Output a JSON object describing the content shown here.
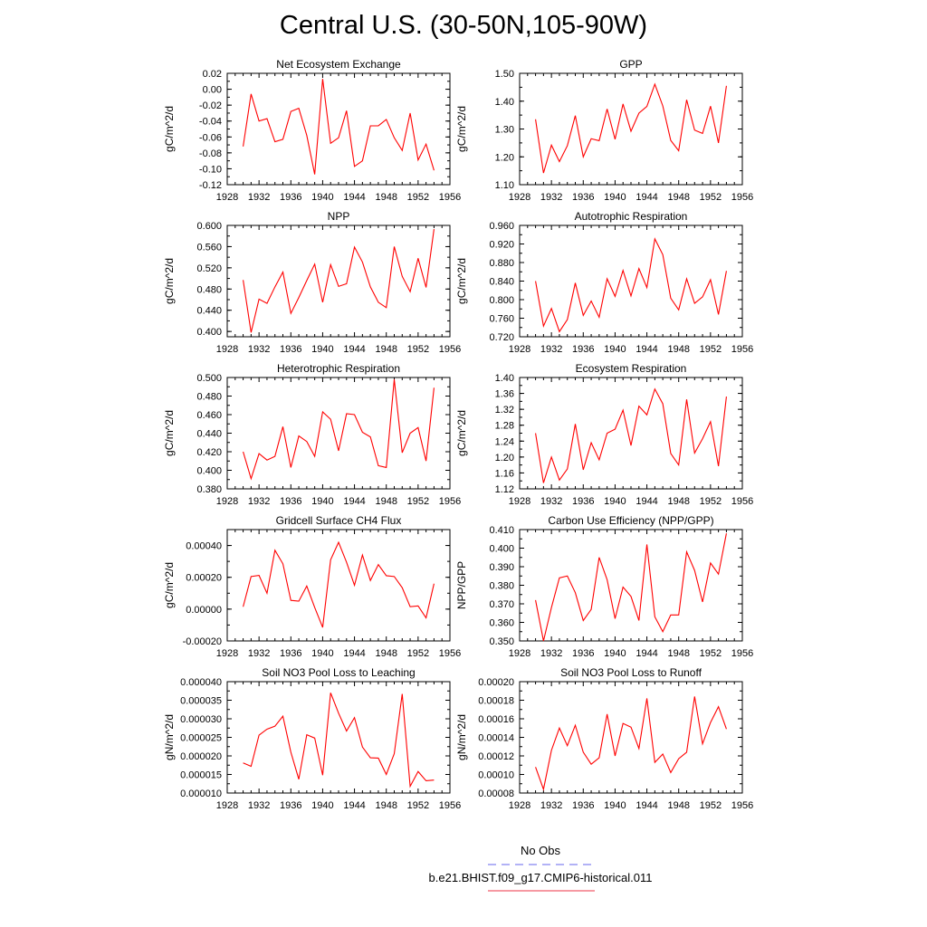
{
  "title": "Central U.S. (30-50N,105-90W)",
  "legend": {
    "obs_label": "No Obs",
    "obs_color": "#6666ee",
    "model_label": "b.e21.BHIST.f09_g17.CMIP6-historical.011",
    "model_color": "#ee3344"
  },
  "line_color": "#ff0000",
  "chart_data": [
    {
      "type": "line",
      "title": "Net Ecosystem Exchange",
      "ylabel": "gC/m^2/d",
      "xlim": [
        1928,
        1956
      ],
      "ylim": [
        -0.12,
        0.02
      ],
      "xticks": [
        "1928",
        "1932",
        "1936",
        "1940",
        "1944",
        "1948",
        "1952",
        "1956"
      ],
      "yticks": [
        "-0.12",
        "-0.10",
        "-0.08",
        "-0.06",
        "-0.04",
        "-0.02",
        "0.00",
        "0.02"
      ],
      "x": [
        1930,
        1931,
        1932,
        1933,
        1934,
        1935,
        1936,
        1937,
        1938,
        1939,
        1940,
        1941,
        1942,
        1943,
        1944,
        1945,
        1946,
        1947,
        1948,
        1949,
        1950,
        1951,
        1952,
        1953,
        1954
      ],
      "values": [
        -0.072,
        -0.006,
        -0.04,
        -0.037,
        -0.066,
        -0.063,
        -0.028,
        -0.024,
        -0.058,
        -0.107,
        0.013,
        -0.068,
        -0.061,
        -0.027,
        -0.097,
        -0.09,
        -0.046,
        -0.046,
        -0.038,
        -0.061,
        -0.077,
        -0.03,
        -0.089,
        -0.069,
        -0.102
      ]
    },
    {
      "type": "line",
      "title": "GPP",
      "ylabel": "gC/m^2/d",
      "xlim": [
        1928,
        1956
      ],
      "ylim": [
        1.1,
        1.5
      ],
      "xticks": [
        "1928",
        "1932",
        "1936",
        "1940",
        "1944",
        "1948",
        "1952",
        "1956"
      ],
      "yticks": [
        "1.10",
        "1.20",
        "1.30",
        "1.40",
        "1.50"
      ],
      "x": [
        1930,
        1931,
        1932,
        1933,
        1934,
        1935,
        1936,
        1937,
        1938,
        1939,
        1940,
        1941,
        1942,
        1943,
        1944,
        1945,
        1946,
        1947,
        1948,
        1949,
        1950,
        1951,
        1952,
        1953,
        1954
      ],
      "values": [
        1.335,
        1.142,
        1.242,
        1.183,
        1.24,
        1.348,
        1.2,
        1.265,
        1.258,
        1.372,
        1.263,
        1.39,
        1.292,
        1.357,
        1.381,
        1.461,
        1.383,
        1.259,
        1.222,
        1.405,
        1.296,
        1.284,
        1.382,
        1.25,
        1.455
      ]
    },
    {
      "type": "line",
      "title": "NPP",
      "ylabel": "gC/m^2/d",
      "xlim": [
        1928,
        1956
      ],
      "ylim": [
        0.39,
        0.6
      ],
      "xticks": [
        "1928",
        "1932",
        "1936",
        "1940",
        "1944",
        "1948",
        "1952",
        "1956"
      ],
      "yticks": [
        "0.400",
        "0.440",
        "0.480",
        "0.520",
        "0.560",
        "0.600"
      ],
      "x": [
        1930,
        1931,
        1932,
        1933,
        1934,
        1935,
        1936,
        1937,
        1938,
        1939,
        1940,
        1941,
        1942,
        1943,
        1944,
        1945,
        1946,
        1947,
        1948,
        1949,
        1950,
        1951,
        1952,
        1953,
        1954
      ],
      "values": [
        0.497,
        0.398,
        0.461,
        0.453,
        0.484,
        0.512,
        0.434,
        0.464,
        0.496,
        0.527,
        0.455,
        0.526,
        0.485,
        0.49,
        0.559,
        0.531,
        0.484,
        0.455,
        0.445,
        0.56,
        0.504,
        0.475,
        0.538,
        0.483,
        0.593
      ]
    },
    {
      "type": "line",
      "title": "Autotrophic Respiration",
      "ylabel": "gC/m^2/d",
      "xlim": [
        1928,
        1956
      ],
      "ylim": [
        0.72,
        0.96
      ],
      "xticks": [
        "1928",
        "1932",
        "1936",
        "1940",
        "1944",
        "1948",
        "1952",
        "1956"
      ],
      "yticks": [
        "0.720",
        "0.760",
        "0.800",
        "0.840",
        "0.880",
        "0.920",
        "0.960"
      ],
      "x": [
        1930,
        1931,
        1932,
        1933,
        1934,
        1935,
        1936,
        1937,
        1938,
        1939,
        1940,
        1941,
        1942,
        1943,
        1944,
        1945,
        1946,
        1947,
        1948,
        1949,
        1950,
        1951,
        1952,
        1953,
        1954
      ],
      "values": [
        0.84,
        0.743,
        0.781,
        0.731,
        0.757,
        0.836,
        0.766,
        0.797,
        0.762,
        0.845,
        0.807,
        0.863,
        0.808,
        0.867,
        0.826,
        0.931,
        0.897,
        0.803,
        0.778,
        0.845,
        0.792,
        0.806,
        0.843,
        0.768,
        0.862
      ]
    },
    {
      "type": "line",
      "title": "Heterotrophic Respiration",
      "ylabel": "gC/m^2/d",
      "xlim": [
        1928,
        1956
      ],
      "ylim": [
        0.38,
        0.5
      ],
      "xticks": [
        "1928",
        "1932",
        "1936",
        "1940",
        "1944",
        "1948",
        "1952",
        "1956"
      ],
      "yticks": [
        "0.380",
        "0.400",
        "0.420",
        "0.440",
        "0.460",
        "0.480",
        "0.500"
      ],
      "x": [
        1930,
        1931,
        1932,
        1933,
        1934,
        1935,
        1936,
        1937,
        1938,
        1939,
        1940,
        1941,
        1942,
        1943,
        1944,
        1945,
        1946,
        1947,
        1948,
        1949,
        1950,
        1951,
        1952,
        1953,
        1954
      ],
      "values": [
        0.42,
        0.391,
        0.418,
        0.411,
        0.415,
        0.447,
        0.403,
        0.437,
        0.431,
        0.415,
        0.463,
        0.455,
        0.421,
        0.461,
        0.46,
        0.441,
        0.436,
        0.405,
        0.403,
        0.498,
        0.419,
        0.44,
        0.446,
        0.41,
        0.489
      ]
    },
    {
      "type": "line",
      "title": "Ecosystem Respiration",
      "ylabel": "gC/m^2/d",
      "xlim": [
        1928,
        1956
      ],
      "ylim": [
        1.12,
        1.4
      ],
      "xticks": [
        "1928",
        "1932",
        "1936",
        "1940",
        "1944",
        "1948",
        "1952",
        "1956"
      ],
      "yticks": [
        "1.12",
        "1.16",
        "1.20",
        "1.24",
        "1.28",
        "1.32",
        "1.36",
        "1.40"
      ],
      "x": [
        1930,
        1931,
        1932,
        1933,
        1934,
        1935,
        1936,
        1937,
        1938,
        1939,
        1940,
        1941,
        1942,
        1943,
        1944,
        1945,
        1946,
        1947,
        1948,
        1949,
        1950,
        1951,
        1952,
        1953,
        1954
      ],
      "values": [
        1.26,
        1.135,
        1.2,
        1.142,
        1.17,
        1.283,
        1.168,
        1.236,
        1.193,
        1.26,
        1.27,
        1.318,
        1.229,
        1.328,
        1.306,
        1.371,
        1.334,
        1.209,
        1.18,
        1.345,
        1.21,
        1.246,
        1.289,
        1.177,
        1.352
      ]
    },
    {
      "type": "line",
      "title": "Gridcell Surface CH4 Flux",
      "ylabel": "gC/m^2/d",
      "xlim": [
        1928,
        1956
      ],
      "ylim": [
        -0.0002,
        0.0005
      ],
      "xticks": [
        "1928",
        "1932",
        "1936",
        "1940",
        "1944",
        "1948",
        "1952",
        "1956"
      ],
      "yticks": [
        "-0.00020",
        "0.00000",
        "0.00020",
        "0.00040"
      ],
      "x": [
        1930,
        1931,
        1932,
        1933,
        1934,
        1935,
        1936,
        1937,
        1938,
        1939,
        1940,
        1941,
        1942,
        1943,
        1944,
        1945,
        1946,
        1947,
        1948,
        1949,
        1950,
        1951,
        1952,
        1953,
        1954
      ],
      "values": [
        1.5e-05,
        0.000205,
        0.000212,
        0.0001,
        0.00037,
        0.000285,
        5.5e-05,
        5e-05,
        0.000145,
        1e-05,
        -0.000115,
        0.00031,
        0.00042,
        0.000295,
        0.00015,
        0.00034,
        0.00018,
        0.00028,
        0.00021,
        0.000205,
        0.000135,
        1.5e-05,
        2e-05,
        -5.5e-05,
        0.00016
      ]
    },
    {
      "type": "line",
      "title": "Carbon Use Efficiency (NPP/GPP)",
      "ylabel": "NPP/GPP",
      "xlim": [
        1928,
        1956
      ],
      "ylim": [
        0.35,
        0.41
      ],
      "xticks": [
        "1928",
        "1932",
        "1936",
        "1940",
        "1944",
        "1948",
        "1952",
        "1956"
      ],
      "yticks": [
        "0.350",
        "0.360",
        "0.370",
        "0.380",
        "0.390",
        "0.400",
        "0.410"
      ],
      "x": [
        1930,
        1931,
        1932,
        1933,
        1934,
        1935,
        1936,
        1937,
        1938,
        1939,
        1940,
        1941,
        1942,
        1943,
        1944,
        1945,
        1946,
        1947,
        1948,
        1949,
        1950,
        1951,
        1952,
        1953,
        1954
      ],
      "values": [
        0.372,
        0.35,
        0.368,
        0.384,
        0.385,
        0.376,
        0.361,
        0.367,
        0.395,
        0.383,
        0.362,
        0.379,
        0.374,
        0.361,
        0.402,
        0.363,
        0.355,
        0.364,
        0.364,
        0.398,
        0.388,
        0.371,
        0.392,
        0.386,
        0.408
      ]
    },
    {
      "type": "line",
      "title": "Soil NO3 Pool Loss to Leaching",
      "ylabel": "gN/m^2/d",
      "xlim": [
        1928,
        1956
      ],
      "ylim": [
        1e-05,
        4e-05
      ],
      "xticks": [
        "1928",
        "1932",
        "1936",
        "1940",
        "1944",
        "1948",
        "1952",
        "1956"
      ],
      "yticks": [
        "0.000010",
        "0.000015",
        "0.000020",
        "0.000025",
        "0.000030",
        "0.000035",
        "0.000040"
      ],
      "x": [
        1930,
        1931,
        1932,
        1933,
        1934,
        1935,
        1936,
        1937,
        1938,
        1939,
        1940,
        1941,
        1942,
        1943,
        1944,
        1945,
        1946,
        1947,
        1948,
        1949,
        1950,
        1951,
        1952,
        1953,
        1954
      ],
      "values": [
        1.81e-05,
        1.72e-05,
        2.56e-05,
        2.72e-05,
        2.8e-05,
        3.07e-05,
        2.1e-05,
        1.37e-05,
        2.57e-05,
        2.48e-05,
        1.48e-05,
        3.7e-05,
        3.15e-05,
        2.67e-05,
        3.03e-05,
        2.24e-05,
        1.95e-05,
        1.94e-05,
        1.5e-05,
        2.06e-05,
        3.67e-05,
        1.18e-05,
        1.58e-05,
        1.33e-05,
        1.35e-05
      ]
    },
    {
      "type": "line",
      "title": "Soil NO3 Pool Loss to Runoff",
      "ylabel": "gN/m^2/d",
      "xlim": [
        1928,
        1956
      ],
      "ylim": [
        8e-05,
        0.0002
      ],
      "xticks": [
        "1928",
        "1932",
        "1936",
        "1940",
        "1944",
        "1948",
        "1952",
        "1956"
      ],
      "yticks": [
        "0.00008",
        "0.00010",
        "0.00012",
        "0.00014",
        "0.00016",
        "0.00018",
        "0.00020"
      ],
      "x": [
        1930,
        1931,
        1932,
        1933,
        1934,
        1935,
        1936,
        1937,
        1938,
        1939,
        1940,
        1941,
        1942,
        1943,
        1944,
        1945,
        1946,
        1947,
        1948,
        1949,
        1950,
        1951,
        1952,
        1953,
        1954
      ],
      "values": [
        0.000108,
        8.4e-05,
        0.000126,
        0.00015,
        0.000131,
        0.000153,
        0.000124,
        0.000111,
        0.000118,
        0.000165,
        0.00012,
        0.000155,
        0.000151,
        0.000128,
        0.000182,
        0.000113,
        0.000122,
        0.000102,
        0.000117,
        0.000124,
        0.000184,
        0.000133,
        0.000156,
        0.000173,
        0.000149
      ]
    }
  ]
}
